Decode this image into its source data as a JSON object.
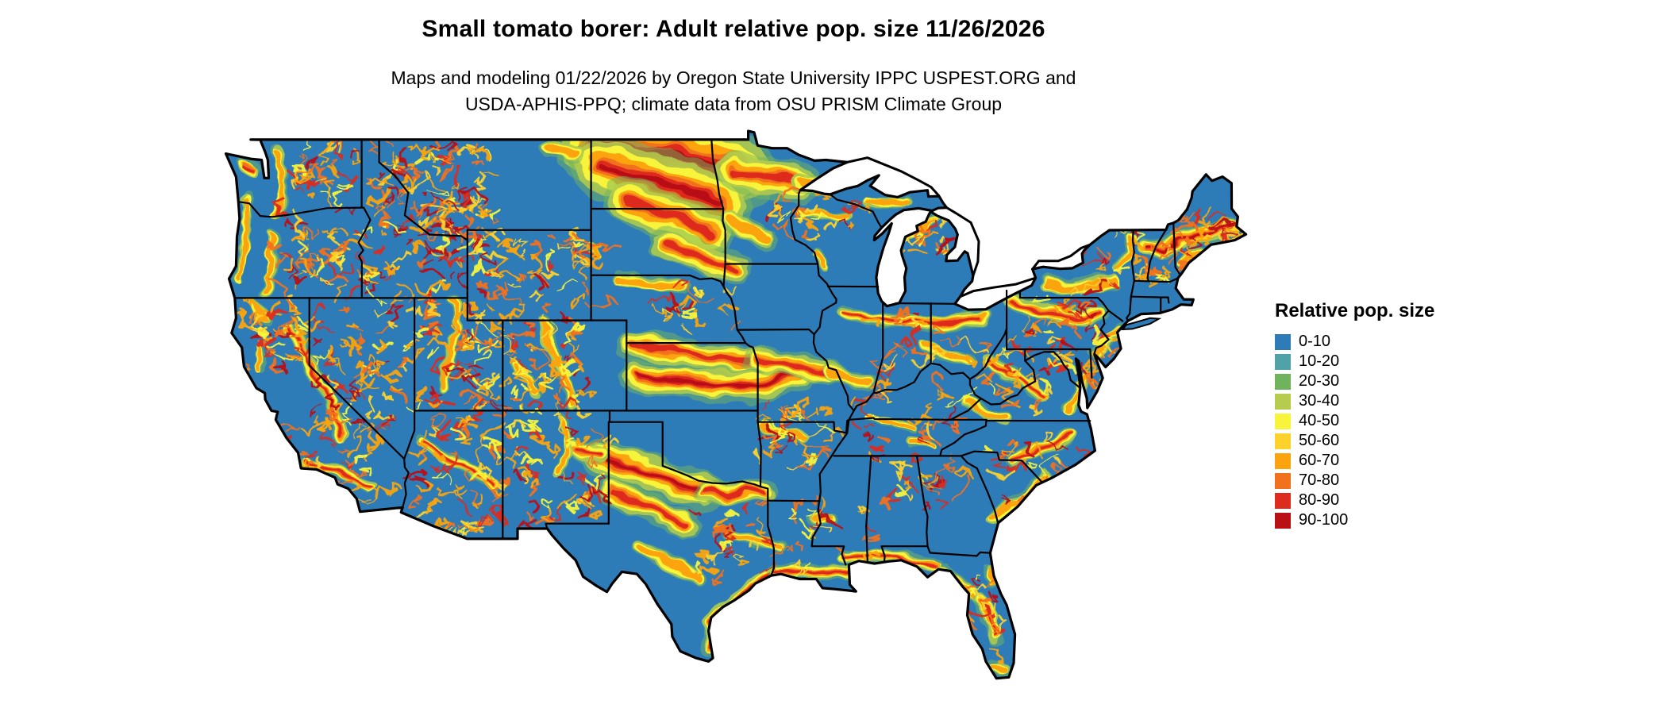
{
  "title": "Small tomato borer: Adult relative pop. size 11/26/2026",
  "subtitle_line1": "Maps and modeling 01/22/2026 by Oregon State University IPPC USPEST.ORG and",
  "subtitle_line2": "USDA-APHIS-PPQ; climate data from OSU PRISM Climate Group",
  "legend": {
    "title": "Relative pop. size",
    "items": [
      {
        "label": "0-10",
        "color": "#2d7cb8"
      },
      {
        "label": "10-20",
        "color": "#4fa3a8"
      },
      {
        "label": "20-30",
        "color": "#6fb45d"
      },
      {
        "label": "30-40",
        "color": "#b5cc4c"
      },
      {
        "label": "40-50",
        "color": "#f7f43b"
      },
      {
        "label": "50-60",
        "color": "#fdd22c"
      },
      {
        "label": "60-70",
        "color": "#fba40f"
      },
      {
        "label": "70-80",
        "color": "#f2711d"
      },
      {
        "label": "80-90",
        "color": "#dd2c1b"
      },
      {
        "label": "90-100",
        "color": "#b81014"
      }
    ]
  },
  "map": {
    "region_shown": "Continental United States with state boundaries",
    "dominant_class": "0-10",
    "outline_color": "#000000",
    "water_color": "#ffffff"
  }
}
